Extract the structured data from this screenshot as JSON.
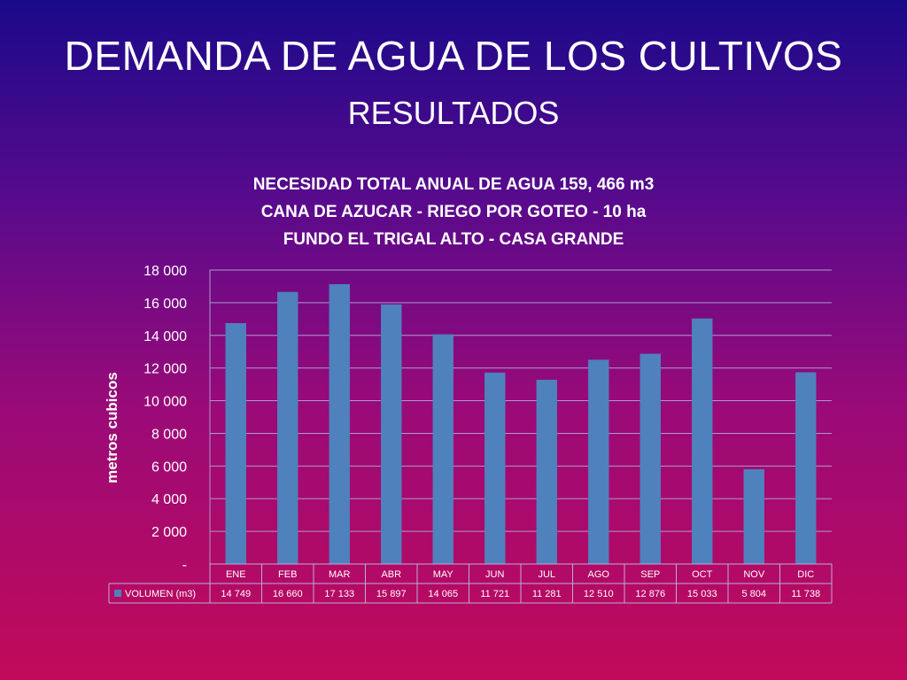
{
  "slide": {
    "title": "DEMANDA  DE AGUA DE LOS CULTIVOS",
    "subtitle": "RESULTADOS"
  },
  "chart_data": {
    "type": "bar",
    "title_lines": [
      "NECESIDAD  TOTAL   ANUAL  DE AGUA  159, 466 m3",
      "CANA  DE  AZUCAR  -  RIEGO  POR  GOTEO  -  10 ha",
      "FUNDO  EL TRIGAL ALTO -  CASA GRANDE"
    ],
    "ylabel": "metros cubicos",
    "ylim": [
      0,
      18000
    ],
    "yticks": [
      0,
      2000,
      4000,
      6000,
      8000,
      10000,
      12000,
      14000,
      16000,
      18000
    ],
    "ytick_labels": [
      "-",
      "2 000",
      "4 000",
      "6 000",
      "8 000",
      "10 000",
      "12 000",
      "14 000",
      "16 000",
      "18 000"
    ],
    "grid": true,
    "categories": [
      "ENE",
      "FEB",
      "MAR",
      "ABR",
      "MAY",
      "JUN",
      "JUL",
      "AGO",
      "SEP",
      "OCT",
      "NOV",
      "DIC"
    ],
    "series": [
      {
        "name": "VOLUMEN (m3)",
        "color": "#4f81bd",
        "values": [
          14749,
          16660,
          17133,
          15897,
          14065,
          11721,
          11281,
          12510,
          12876,
          15033,
          5804,
          11738
        ],
        "value_labels": [
          "14 749",
          "16 660",
          "17 133",
          "15 897",
          "14 065",
          "11 721",
          "11 281",
          "12 510",
          "12 876",
          "15 033",
          "5 804",
          "11 738"
        ]
      }
    ],
    "data_table": true
  }
}
